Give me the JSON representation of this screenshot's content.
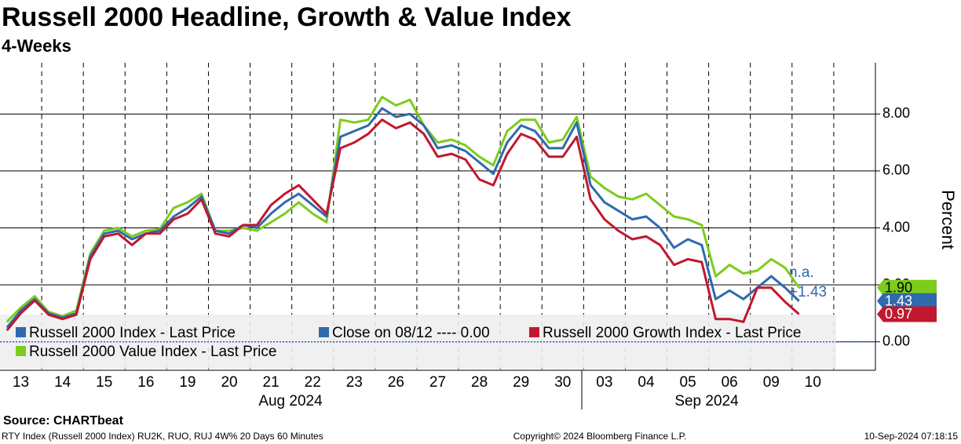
{
  "chart_data": {
    "type": "line",
    "title": "Russell 2000 Headline, Growth & Value Index",
    "subtitle": "4-Weeks",
    "y_axis_label": "Percent",
    "source": "Source: CHARTbeat",
    "footer_left": "RTY Index (Russell 2000 Index) RU2K, RUO, RUJ 4W% 20 Days 60 Minutes",
    "footer_center": "Copyright© 2024 Bloomberg Finance L.P.",
    "footer_right": "10-Sep-2024 07:18:15",
    "months": [
      "Aug 2024",
      "Sep 2024"
    ],
    "annotations": [
      "n.a.",
      "+1.43"
    ],
    "categories": [
      null,
      "13",
      null,
      null,
      "14",
      null,
      null,
      "15",
      null,
      null,
      "16",
      null,
      null,
      "19",
      null,
      null,
      "20",
      null,
      null,
      "21",
      null,
      null,
      "22",
      null,
      null,
      "23",
      null,
      null,
      "26",
      null,
      null,
      "27",
      null,
      null,
      "28",
      null,
      null,
      "29",
      null,
      null,
      "30",
      null,
      null,
      "03",
      null,
      null,
      "04",
      null,
      null,
      "05",
      null,
      null,
      "06",
      null,
      null,
      "09",
      null,
      null,
      "10",
      null,
      null,
      null,
      null
    ],
    "series": [
      {
        "name": "Russell 2000 Value Index - Last Price",
        "color": "#7ccc1c",
        "end_label": "1.90",
        "values": [
          0.7,
          1.2,
          1.6,
          1.05,
          0.9,
          1.1,
          3.1,
          3.9,
          4.0,
          3.7,
          3.9,
          3.95,
          4.7,
          4.9,
          5.2,
          3.9,
          3.9,
          4.0,
          3.9,
          4.2,
          4.5,
          4.9,
          4.5,
          4.2,
          7.8,
          7.7,
          7.8,
          8.6,
          8.3,
          8.5,
          7.6,
          7.0,
          7.1,
          6.9,
          6.5,
          6.2,
          7.4,
          7.8,
          7.8,
          7.0,
          7.1,
          7.9,
          5.8,
          5.4,
          5.1,
          5.0,
          5.2,
          4.8,
          4.4,
          4.3,
          4.1,
          2.3,
          2.7,
          2.4,
          2.5,
          2.9,
          2.6,
          1.9,
          null,
          null,
          null,
          null,
          null
        ]
      },
      {
        "name": "Russell 2000 Index - Last Price",
        "color": "#2e6aad",
        "end_label": "1.43",
        "values": [
          0.5,
          1.1,
          1.5,
          1.0,
          0.85,
          1.0,
          3.0,
          3.8,
          3.9,
          3.6,
          3.8,
          3.9,
          4.4,
          4.7,
          5.1,
          3.9,
          3.8,
          4.1,
          4.0,
          4.5,
          4.9,
          5.2,
          4.8,
          4.4,
          7.2,
          7.4,
          7.6,
          8.2,
          7.9,
          8.0,
          7.6,
          6.8,
          6.9,
          6.7,
          6.3,
          5.9,
          7.0,
          7.6,
          7.4,
          6.8,
          6.8,
          7.7,
          5.5,
          4.9,
          4.6,
          4.3,
          4.4,
          4.0,
          3.3,
          3.6,
          3.4,
          1.5,
          1.8,
          1.5,
          1.9,
          2.3,
          1.9,
          1.43,
          null,
          null,
          null,
          null,
          null
        ]
      },
      {
        "name": "Russell 2000 Growth Index - Last Price",
        "color": "#c0182e",
        "end_label": "0.97",
        "values": [
          0.4,
          1.0,
          1.45,
          0.95,
          0.8,
          0.95,
          2.9,
          3.7,
          3.8,
          3.4,
          3.8,
          3.8,
          4.3,
          4.5,
          5.0,
          3.8,
          3.7,
          4.1,
          4.1,
          4.8,
          5.2,
          5.5,
          5.0,
          4.5,
          6.8,
          7.0,
          7.3,
          7.8,
          7.5,
          7.7,
          7.3,
          6.5,
          6.6,
          6.4,
          5.7,
          5.5,
          6.6,
          7.3,
          7.1,
          6.5,
          6.5,
          7.2,
          5.0,
          4.3,
          3.9,
          3.6,
          3.7,
          3.4,
          2.7,
          2.9,
          2.8,
          0.8,
          0.8,
          0.7,
          1.9,
          1.9,
          1.4,
          0.97,
          null,
          null,
          null,
          null,
          null
        ]
      }
    ],
    "reference": {
      "name": "Close on 08/12 ---- 0.00",
      "value": 0,
      "color": "#2e6aad"
    },
    "ylim": [
      -1,
      9.8
    ],
    "yticks": [
      {
        "value": 0,
        "label": "0.00"
      },
      {
        "value": 2,
        "label": "2.00"
      },
      {
        "value": 4,
        "label": "4.00"
      },
      {
        "value": 6,
        "label": "6.00"
      },
      {
        "value": 8,
        "label": "8.00"
      }
    ],
    "grid": true
  }
}
